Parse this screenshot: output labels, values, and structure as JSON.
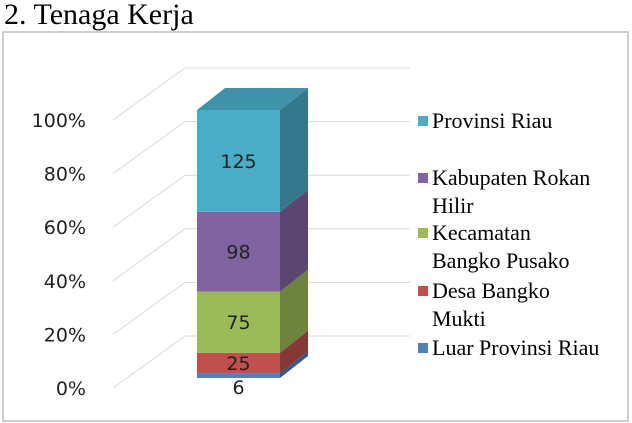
{
  "heading": "2. Tenaga Kerja",
  "chart_data": {
    "type": "stacked_bar_100_3d",
    "categories": [
      null
    ],
    "series": [
      {
        "name": "Luar Provinsi Riau",
        "color": "#4f81bd",
        "values": [
          6
        ]
      },
      {
        "name": "Desa Bangko Mukti",
        "color": "#c0504d",
        "values": [
          25
        ]
      },
      {
        "name": "Kecamatan Bangko Pusako",
        "color": "#9bbb59",
        "values": [
          75
        ]
      },
      {
        "name": "Kabupaten Rokan Hilir",
        "color": "#8064a2",
        "values": [
          98
        ]
      },
      {
        "name": "Provinsi Riau",
        "color": "#4bacc6",
        "values": [
          125
        ]
      }
    ],
    "ylim": [
      0,
      100
    ],
    "yticks": [
      {
        "value": 0,
        "label": "0%"
      },
      {
        "value": 20,
        "label": "20%"
      },
      {
        "value": 40,
        "label": "40%"
      },
      {
        "value": 60,
        "label": "60%"
      },
      {
        "value": 80,
        "label": "80%"
      },
      {
        "value": 100,
        "label": "100%"
      }
    ],
    "grid": true,
    "legend": "right"
  }
}
